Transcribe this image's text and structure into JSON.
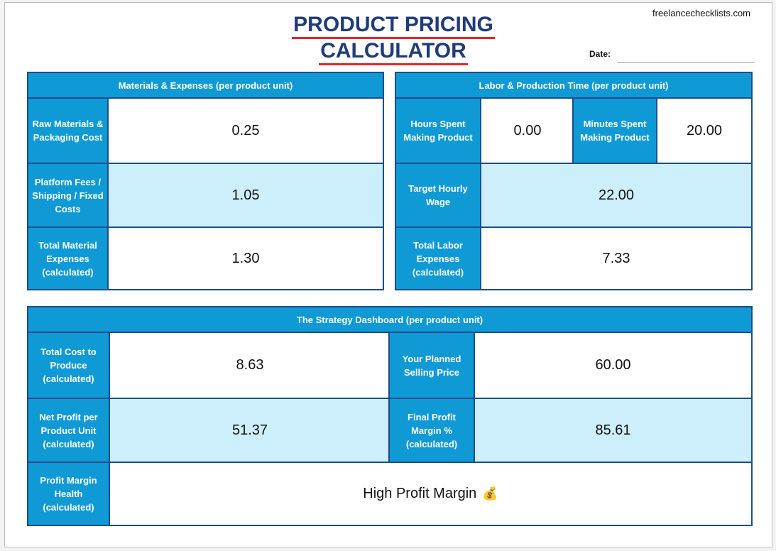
{
  "header": {
    "title_line1": "PRODUCT PRICING",
    "title_line2": "CALCULATOR",
    "website": "freelancechecklists.com",
    "date_label": "Date:",
    "date_value": ""
  },
  "materials": {
    "heading": "Materials & Expenses (per product unit)",
    "raw_label": "Raw Materials & Packaging Cost",
    "raw_value": "0.25",
    "platform_label": "Platform Fees / Shipping / Fixed Costs",
    "platform_value": "1.05",
    "total_label": "Total Material Expenses (calculated)",
    "total_value": "1.30"
  },
  "labor": {
    "heading": "Labor & Production Time (per product unit)",
    "hours_label": "Hours Spent Making Product",
    "hours_value": "0.00",
    "minutes_label": "Minutes Spent Making Product",
    "minutes_value": "20.00",
    "wage_label": "Target Hourly Wage",
    "wage_value": "22.00",
    "total_label": "Total Labor Expenses (calculated)",
    "total_value": "7.33"
  },
  "strategy": {
    "heading": "The Strategy Dashboard (per product unit)",
    "cost_label": "Total Cost to Produce (calculated)",
    "cost_value": "8.63",
    "price_label": "Your Planned Selling Price",
    "price_value": "60.00",
    "net_label": "Net Profit per Product Unit (calculated)",
    "net_value": "51.37",
    "margin_label": "Final Profit Margin % (calculated)",
    "margin_value": "85.61",
    "health_label": "Profit Margin Health (calculated)",
    "health_value": "High Profit Margin",
    "health_icon": "money-bag-icon"
  },
  "colors": {
    "header_blue": "#0f9ad6",
    "light_blue": "#cdeffb",
    "border_navy": "#1a4d8c",
    "title_navy": "#1f3b7a",
    "underline_red": "#e0282e"
  }
}
